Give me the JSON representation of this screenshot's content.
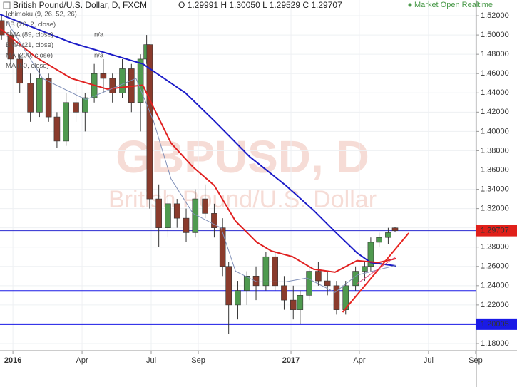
{
  "chart_data": {
    "type": "candlestick",
    "title": "British Pound/U.S. Dollar, D, FXCM",
    "ohlc_text": "O 1.29991 H 1.30050 L 1.29529 C 1.29707",
    "status": "Market Open Realtime",
    "watermark": "GBPUSD, D",
    "watermark_sub": "British Pound/U.S. Dollar",
    "indicators": [
      "Ichimoku (9, 26, 52, 26)",
      "BB (20, 2, close)",
      "SMA (89, close)",
      "EMA (21, close)",
      "MA (200, close)",
      "MA (50, close)"
    ],
    "indicator_note": "n/a",
    "xlim": [
      -17,
      610
    ],
    "xticks": [
      {
        "value": 0,
        "label": "2016"
      },
      {
        "value": 91,
        "label": "Apr"
      },
      {
        "value": 182,
        "label": "Jul"
      },
      {
        "value": 244,
        "label": "Sep"
      },
      {
        "value": 366,
        "label": "2017"
      },
      {
        "value": 456,
        "label": "Apr"
      },
      {
        "value": 547,
        "label": "Jul"
      },
      {
        "value": 609,
        "label": "Sep"
      }
    ],
    "ylim": [
      1.1726,
      1.5363
    ],
    "yticks": [
      {
        "value": 1.18,
        "label": "1.18000"
      },
      {
        "value": 1.2,
        "label": "1.20000"
      },
      {
        "value": 1.22,
        "label": "1.22000"
      },
      {
        "value": 1.24,
        "label": "1.24000"
      },
      {
        "value": 1.26,
        "label": "1.26000"
      },
      {
        "value": 1.28,
        "label": "1.28000"
      },
      {
        "value": 1.3,
        "label": "1.30000"
      },
      {
        "value": 1.32,
        "label": "1.32000"
      },
      {
        "value": 1.34,
        "label": "1.34000"
      },
      {
        "value": 1.36,
        "label": "1.36000"
      },
      {
        "value": 1.38,
        "label": "1.38000"
      },
      {
        "value": 1.4,
        "label": "1.40000"
      },
      {
        "value": 1.42,
        "label": "1.42000"
      },
      {
        "value": 1.44,
        "label": "1.44000"
      },
      {
        "value": 1.46,
        "label": "1.46000"
      },
      {
        "value": 1.48,
        "label": "1.48000"
      },
      {
        "value": 1.5,
        "label": "1.50000"
      },
      {
        "value": 1.52,
        "label": "1.52000"
      }
    ],
    "grid": true,
    "up_color": "#4f9a4f",
    "down_color": "#8a3b2c",
    "candles": {
      "x": [
        -15,
        -3,
        9,
        23,
        35,
        47,
        58,
        70,
        83,
        95,
        107,
        119,
        131,
        144,
        156,
        168,
        176,
        180,
        192,
        204,
        216,
        228,
        240,
        253,
        265,
        276,
        284,
        296,
        308,
        320,
        333,
        345,
        357,
        369,
        378,
        390,
        402,
        414,
        426,
        438,
        451,
        463,
        471,
        482,
        494,
        503
      ],
      "open": [
        1.515,
        1.5,
        1.475,
        1.45,
        1.42,
        1.455,
        1.415,
        1.39,
        1.43,
        1.42,
        1.435,
        1.46,
        1.455,
        1.44,
        1.465,
        1.43,
        1.475,
        1.49,
        1.33,
        1.3,
        1.325,
        1.31,
        1.295,
        1.33,
        1.315,
        1.3,
        1.26,
        1.22,
        1.235,
        1.25,
        1.24,
        1.27,
        1.24,
        1.225,
        1.215,
        1.23,
        1.255,
        1.245,
        1.24,
        1.215,
        1.24,
        1.255,
        1.26,
        1.285,
        1.29,
        1.29991
      ],
      "high": [
        1.522,
        1.505,
        1.48,
        1.46,
        1.465,
        1.46,
        1.42,
        1.44,
        1.45,
        1.44,
        1.47,
        1.475,
        1.46,
        1.475,
        1.47,
        1.48,
        1.5,
        1.49,
        1.345,
        1.335,
        1.33,
        1.32,
        1.34,
        1.345,
        1.325,
        1.31,
        1.265,
        1.245,
        1.255,
        1.26,
        1.275,
        1.275,
        1.25,
        1.24,
        1.235,
        1.26,
        1.265,
        1.255,
        1.245,
        1.245,
        1.26,
        1.265,
        1.29,
        1.295,
        1.3,
        1.3005
      ],
      "low": [
        1.495,
        1.47,
        1.44,
        1.41,
        1.415,
        1.41,
        1.383,
        1.385,
        1.41,
        1.4,
        1.43,
        1.44,
        1.43,
        1.435,
        1.42,
        1.4,
        1.47,
        1.32,
        1.28,
        1.29,
        1.3,
        1.285,
        1.29,
        1.31,
        1.29,
        1.25,
        1.19,
        1.205,
        1.22,
        1.225,
        1.235,
        1.235,
        1.215,
        1.205,
        1.2,
        1.225,
        1.24,
        1.23,
        1.21,
        1.21,
        1.235,
        1.245,
        1.255,
        1.28,
        1.283,
        1.29529
      ],
      "close": [
        1.5,
        1.475,
        1.45,
        1.42,
        1.455,
        1.415,
        1.39,
        1.43,
        1.42,
        1.435,
        1.46,
        1.455,
        1.44,
        1.465,
        1.43,
        1.475,
        1.49,
        1.33,
        1.3,
        1.325,
        1.31,
        1.295,
        1.33,
        1.315,
        1.3,
        1.26,
        1.22,
        1.235,
        1.25,
        1.24,
        1.27,
        1.24,
        1.225,
        1.215,
        1.23,
        1.255,
        1.245,
        1.24,
        1.215,
        1.24,
        1.255,
        1.26,
        1.285,
        1.29,
        1.295,
        1.29707
      ]
    },
    "series": [
      {
        "name": "MA (200, close)",
        "color": "#1c1cc8",
        "width": 2,
        "x": [
          -17,
          77,
          171,
          227,
          265,
          312,
          359,
          396,
          424,
          453,
          471,
          504
        ],
        "values": [
          1.5215,
          1.492,
          1.47,
          1.44,
          1.411,
          1.3735,
          1.344,
          1.318,
          1.296,
          1.274,
          1.264,
          1.2606
        ]
      },
      {
        "name": "MA (50, close)",
        "color": "#e02020",
        "width": 2,
        "x": [
          -17,
          30,
          77,
          124,
          171,
          185,
          208,
          237,
          265,
          293,
          321,
          340,
          368,
          396,
          424,
          453,
          481,
          504
        ],
        "values": [
          1.5067,
          1.477,
          1.455,
          1.444,
          1.448,
          1.425,
          1.388,
          1.363,
          1.344,
          1.307,
          1.285,
          1.276,
          1.27,
          1.257,
          1.254,
          1.266,
          1.264,
          1.268
        ]
      },
      {
        "name": "EMA (21, close)",
        "color": "#7f8fb8",
        "width": 1,
        "x": [
          -8,
          39,
          96,
          162,
          185,
          208,
          237,
          274,
          293,
          321,
          359,
          387,
          424,
          453,
          504
        ],
        "values": [
          1.514,
          1.455,
          1.433,
          1.455,
          1.411,
          1.351,
          1.315,
          1.3,
          1.255,
          1.244,
          1.244,
          1.248,
          1.233,
          1.251,
          1.261
        ]
      }
    ],
    "hlines": [
      {
        "value": 1.29707,
        "label": "1.29707",
        "color": "#2a2ad0",
        "width": 1,
        "label_color": "#e0201a"
      },
      {
        "value": 1.2345,
        "color": "#1a1ae6",
        "width": 2
      },
      {
        "value": 1.20005,
        "label": "1.20005",
        "color": "#1a1ae6",
        "width": 2,
        "label_color": "#1a1ae6"
      }
    ],
    "trendlines": [
      {
        "x": [
          434,
          521
        ],
        "y": [
          1.2125,
          1.2946
        ],
        "color": "#e8231f",
        "width": 2
      },
      {
        "x": [
          453,
          504
        ],
        "y": [
          1.2421,
          1.2701
        ],
        "color": "#e05080",
        "width": 1
      }
    ]
  }
}
